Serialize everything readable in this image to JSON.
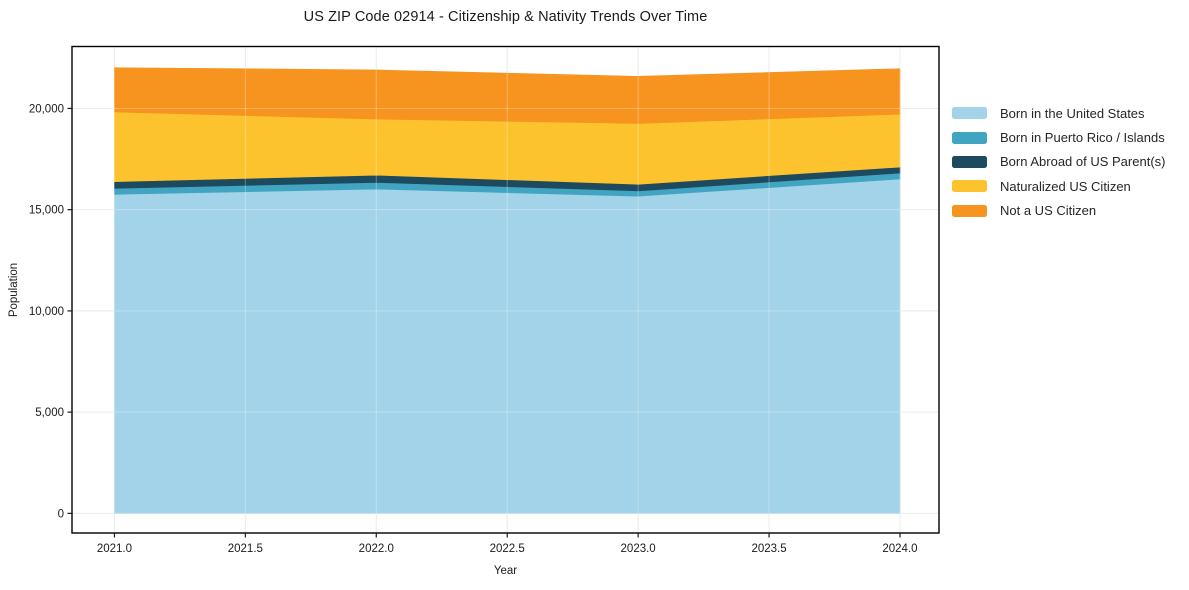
{
  "chart_data": {
    "type": "area",
    "stacked": true,
    "title": "US ZIP Code 02914 - Citizenship & Nativity Trends Over Time",
    "xlabel": "Year",
    "ylabel": "Population",
    "x": [
      2021,
      2022,
      2023,
      2024
    ],
    "series": [
      {
        "name": "Born in the United States",
        "color": "#a3d3e8",
        "values": [
          15760,
          16020,
          15670,
          16520
        ]
      },
      {
        "name": "Born in Puerto Rico / Islands",
        "color": "#41a5c2",
        "values": [
          300,
          330,
          260,
          295
        ]
      },
      {
        "name": "Born Abroad of US Parent(s)",
        "color": "#1d4a5e",
        "values": [
          330,
          360,
          330,
          295
        ]
      },
      {
        "name": "Naturalized US Citizen",
        "color": "#fdc32e",
        "values": [
          3440,
          2770,
          3000,
          2610
        ]
      },
      {
        "name": "Not a US Citizen",
        "color": "#f6941f",
        "values": [
          2180,
          2420,
          2320,
          2240
        ]
      }
    ],
    "totals": [
      22010,
      21900,
      21580,
      21960
    ],
    "xticks": [
      2021.0,
      2021.5,
      2022.0,
      2022.5,
      2023.0,
      2023.5,
      2024.0
    ],
    "xtick_labels": [
      "2021.0",
      "2021.5",
      "2022.0",
      "2022.5",
      "2023.0",
      "2023.5",
      "2024.0"
    ],
    "yticks": [
      0,
      5000,
      10000,
      15000,
      20000
    ],
    "ytick_labels": [
      "0",
      "5,000",
      "10,000",
      "15,000",
      "20,000"
    ],
    "xlim": [
      2020.838,
      2024.149
    ],
    "ylim": [
      -970,
      23060
    ],
    "grid": true,
    "legend_position": "right",
    "colors": {
      "gridline": "#e4e4e4",
      "spine": "#000000",
      "tick": "#1a1a1a",
      "tick_label": "#1a1a1a",
      "background": "#ffffff"
    }
  }
}
